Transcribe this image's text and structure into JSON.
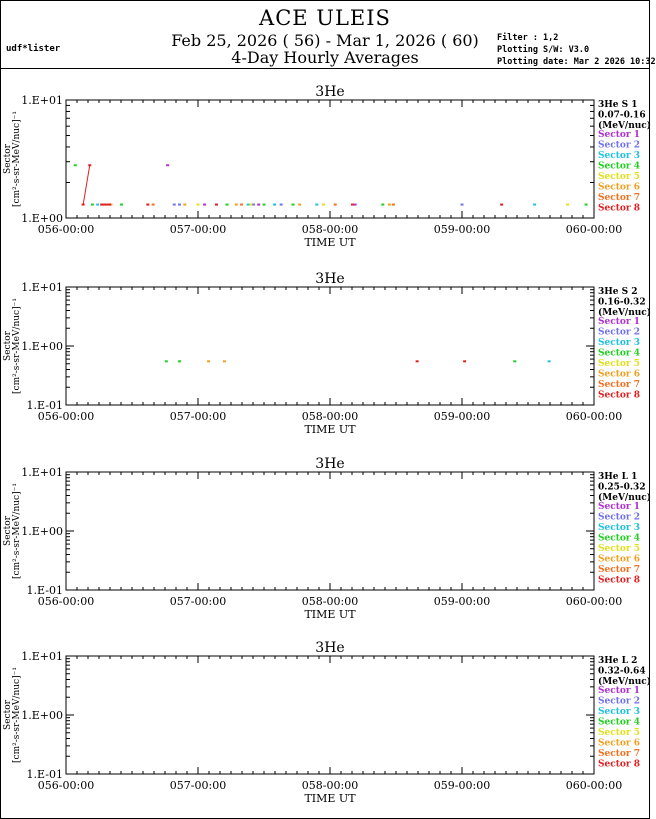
{
  "header": {
    "title": "ACE ULEIS",
    "subtitle": "Feb 25, 2026 ( 56) - Mar  1, 2026 ( 60)",
    "subtitle2": "4-Day Hourly Averages",
    "user": "udf*lister",
    "filter": "Filter : 1,2",
    "software": "Plotting S/W: V3.0",
    "plot_date": "Plotting date: Mar  2 2026 10:32"
  },
  "legend_sectors": [
    "Sector 1",
    "Sector 2",
    "Sector 3",
    "Sector 4",
    "Sector 5",
    "Sector 6",
    "Sector 7",
    "Sector 8"
  ],
  "sector_colors": [
    "#b030d0",
    "#7070f0",
    "#20c0e0",
    "#20d020",
    "#e0e020",
    "#f0a020",
    "#f07020",
    "#e02020"
  ],
  "chart_data": [
    {
      "type": "scatter",
      "title": "3He",
      "xlabel": "TIME UT",
      "ylabel": "Sector",
      "ylabel_units": "[cm²-s-sr-MeV/nuc]⁻¹",
      "yscale": "log",
      "ylim": [
        1.0,
        10.0
      ],
      "yticks": [
        "1.E+00",
        "1.E+01"
      ],
      "xlim": [
        56.0,
        60.0
      ],
      "xticks": [
        "056-00:00",
        "057-00:00",
        "058-00:00",
        "059-00:00",
        "060-00:00"
      ],
      "legend_title": [
        "3He S 1",
        "0.07-0.16",
        "(MeV/nuc)"
      ],
      "series": [
        {
          "name": "Sector 4",
          "points": [
            [
              56.07,
              2.8
            ],
            [
              56.2,
              1.3
            ],
            [
              56.42,
              1.3
            ],
            [
              57.22,
              1.3
            ],
            [
              57.5,
              1.3
            ],
            [
              57.72,
              1.3
            ],
            [
              58.4,
              1.3
            ],
            [
              59.94,
              1.3
            ]
          ]
        },
        {
          "name": "Sector 3",
          "points": [
            [
              56.24,
              1.3
            ],
            [
              57.38,
              1.3
            ],
            [
              57.58,
              1.3
            ],
            [
              57.9,
              1.3
            ],
            [
              59.55,
              1.3
            ]
          ]
        },
        {
          "name": "Sector 2",
          "points": [
            [
              56.82,
              1.3
            ],
            [
              56.86,
              1.3
            ],
            [
              57.42,
              1.3
            ],
            [
              57.63,
              1.3
            ],
            [
              59.0,
              1.3
            ]
          ]
        },
        {
          "name": "Sector 5",
          "points": [
            [
              56.3,
              1.3
            ],
            [
              57.0,
              1.3
            ],
            [
              57.4,
              1.3
            ],
            [
              57.95,
              1.3
            ],
            [
              59.8,
              1.3
            ]
          ]
        },
        {
          "name": "Sector 6",
          "points": [
            [
              56.34,
              1.3
            ],
            [
              56.9,
              1.3
            ],
            [
              57.29,
              1.3
            ],
            [
              57.77,
              1.3
            ],
            [
              58.45,
              1.3
            ]
          ]
        },
        {
          "name": "Sector 7",
          "points": [
            [
              56.28,
              1.3
            ],
            [
              56.66,
              1.3
            ],
            [
              57.33,
              1.3
            ],
            [
              58.04,
              1.3
            ],
            [
              58.48,
              1.3
            ]
          ]
        },
        {
          "name": "Sector 8",
          "points": [
            [
              56.13,
              1.3
            ],
            [
              56.18,
              2.8
            ],
            [
              56.27,
              1.3
            ],
            [
              56.29,
              1.3
            ],
            [
              56.31,
              1.3
            ],
            [
              56.33,
              1.3
            ],
            [
              56.62,
              1.3
            ],
            [
              57.14,
              1.3
            ],
            [
              58.17,
              1.3
            ],
            [
              59.3,
              1.3
            ]
          ]
        },
        {
          "name": "Sector 1",
          "points": [
            [
              56.77,
              2.8
            ],
            [
              57.05,
              1.3
            ],
            [
              57.46,
              1.3
            ],
            [
              58.19,
              1.3
            ]
          ]
        }
      ]
    },
    {
      "type": "scatter",
      "title": "3He",
      "xlabel": "TIME UT",
      "ylabel": "Sector",
      "ylabel_units": "[cm²-s-sr-MeV/nuc]⁻¹",
      "yscale": "log",
      "ylim": [
        0.1,
        10.0
      ],
      "yticks": [
        "1.E-01",
        "1.E+00",
        "1.E+01"
      ],
      "xlim": [
        56.0,
        60.0
      ],
      "xticks": [
        "056-00:00",
        "057-00:00",
        "058-00:00",
        "059-00:00",
        "060-00:00"
      ],
      "legend_title": [
        "3He S 2",
        "0.16-0.32",
        "(MeV/nuc)"
      ],
      "series": [
        {
          "name": "Sector 4",
          "points": [
            [
              56.76,
              0.55
            ],
            [
              56.86,
              0.55
            ],
            [
              59.4,
              0.55
            ]
          ]
        },
        {
          "name": "Sector 3",
          "points": [
            [
              59.66,
              0.55
            ]
          ]
        },
        {
          "name": "Sector 6",
          "points": [
            [
              57.08,
              0.55
            ],
            [
              57.2,
              0.55
            ]
          ]
        },
        {
          "name": "Sector 8",
          "points": [
            [
              58.66,
              0.55
            ],
            [
              59.02,
              0.55
            ]
          ]
        }
      ]
    },
    {
      "type": "scatter",
      "title": "3He",
      "xlabel": "TIME UT",
      "ylabel": "Sector",
      "ylabel_units": "[cm²-s-sr-MeV/nuc]⁻¹",
      "yscale": "log",
      "ylim": [
        0.1,
        10.0
      ],
      "yticks": [
        "1.E-01",
        "1.E+00",
        "1.E+01"
      ],
      "xlim": [
        56.0,
        60.0
      ],
      "xticks": [
        "056-00:00",
        "057-00:00",
        "058-00:00",
        "059-00:00",
        "060-00:00"
      ],
      "legend_title": [
        "3He L 1",
        "0.25-0.32",
        "(MeV/nuc)"
      ],
      "series": []
    },
    {
      "type": "scatter",
      "title": "3He",
      "xlabel": "TIME UT",
      "ylabel": "Sector",
      "ylabel_units": "[cm²-s-sr-MeV/nuc]⁻¹",
      "yscale": "log",
      "ylim": [
        0.1,
        10.0
      ],
      "yticks": [
        "1.E-01",
        "1.E+00",
        "1.E+01"
      ],
      "xlim": [
        56.0,
        60.0
      ],
      "xticks": [
        "056-00:00",
        "057-00:00",
        "058-00:00",
        "059-00:00",
        "060-00:00"
      ],
      "legend_title": [
        "3He L 2",
        "0.32-0.64",
        "(MeV/nuc)"
      ],
      "series": []
    }
  ]
}
